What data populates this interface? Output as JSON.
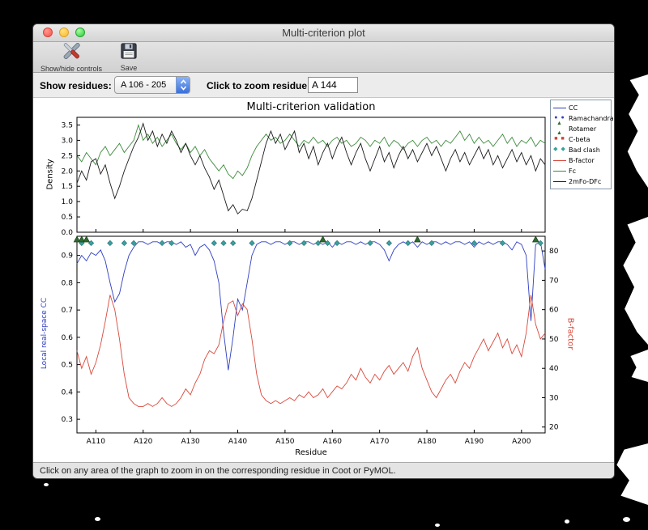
{
  "window": {
    "title": "Multi-criterion plot",
    "toolbar": {
      "show_hide_label": "Show/hide controls",
      "save_label": "Save"
    },
    "controls": {
      "show_residues_label": "Show residues:",
      "residue_range_value": "A 106 - 205",
      "zoom_label": "Click to zoom residue:",
      "zoom_value": "A 144"
    },
    "status_text": "Click on any area of the graph to zoom in on the corresponding residue in Coot or PyMOL."
  },
  "chart_data": {
    "type": "line",
    "title": "Multi-criterion validation",
    "x_label": "Residue",
    "x_start": 106,
    "x_end": 205,
    "x_ticks": [
      "A110",
      "A120",
      "A130",
      "A140",
      "A150",
      "A160",
      "A170",
      "A180",
      "A190",
      "A200"
    ],
    "legend_position": "top-right",
    "top_plot": {
      "y_label": "Density",
      "y_ticks": [
        0.0,
        0.5,
        1.0,
        1.5,
        2.0,
        2.5,
        3.0,
        3.5
      ],
      "ylim": [
        0,
        3.75
      ],
      "series": [
        {
          "name": "Fc",
          "color": "#3d8b3d",
          "values": [
            2.5,
            2.3,
            2.6,
            2.4,
            2.2,
            2.6,
            2.8,
            2.5,
            2.7,
            2.9,
            2.6,
            2.8,
            3.0,
            3.5,
            3.0,
            3.2,
            2.9,
            3.1,
            2.8,
            3.0,
            3.2,
            2.9,
            2.7,
            2.9,
            2.6,
            2.8,
            2.5,
            2.7,
            2.4,
            2.2,
            2.0,
            2.2,
            1.9,
            1.75,
            2.0,
            1.85,
            2.1,
            2.5,
            2.8,
            3.0,
            3.2,
            3.0,
            3.1,
            2.9,
            3.0,
            3.2,
            3.0,
            2.8,
            3.0,
            2.9,
            3.1,
            2.9,
            3.0,
            2.8,
            3.0,
            3.1,
            2.9,
            3.0,
            2.8,
            2.9,
            3.1,
            3.0,
            2.8,
            3.0,
            2.9,
            3.1,
            2.8,
            3.0,
            2.9,
            2.7,
            2.9,
            3.0,
            2.8,
            3.0,
            3.1,
            2.9,
            3.0,
            2.8,
            3.0,
            2.9,
            3.1,
            3.3,
            3.0,
            3.2,
            2.9,
            3.1,
            2.9,
            3.0,
            2.8,
            3.0,
            3.2,
            2.9,
            3.1,
            2.8,
            3.0,
            2.9,
            3.1,
            2.8,
            3.0,
            2.9
          ]
        },
        {
          "name": "2mFo-DFc",
          "color": "#1a1a1a",
          "values": [
            1.6,
            2.0,
            1.7,
            2.3,
            2.4,
            1.9,
            2.2,
            1.6,
            1.1,
            1.5,
            2.0,
            2.4,
            2.8,
            3.1,
            3.55,
            3.0,
            3.3,
            2.8,
            3.2,
            2.9,
            3.3,
            3.0,
            2.6,
            2.9,
            2.5,
            2.2,
            2.5,
            2.1,
            1.8,
            1.4,
            1.7,
            1.2,
            0.7,
            0.9,
            0.6,
            0.75,
            0.7,
            1.1,
            1.7,
            2.3,
            2.9,
            3.3,
            2.9,
            3.2,
            2.7,
            3.0,
            3.3,
            2.6,
            2.9,
            2.4,
            2.8,
            2.2,
            2.6,
            2.9,
            2.4,
            2.8,
            3.1,
            2.6,
            2.2,
            2.6,
            2.9,
            2.4,
            2.0,
            2.4,
            2.8,
            2.3,
            2.6,
            2.1,
            2.5,
            2.8,
            2.4,
            2.7,
            2.3,
            2.6,
            2.9,
            2.5,
            2.8,
            2.4,
            2.0,
            2.4,
            2.7,
            2.3,
            2.6,
            2.2,
            2.5,
            2.8,
            2.4,
            2.7,
            2.2,
            2.5,
            2.1,
            2.4,
            2.7,
            2.3,
            2.6,
            2.2,
            2.5,
            2.0,
            2.4,
            2.2
          ]
        }
      ]
    },
    "bottom_plot": {
      "y_label_left": "Local real-space CC",
      "y_label_right": "B-factor",
      "y_ticks_left": [
        0.3,
        0.4,
        0.5,
        0.6,
        0.7,
        0.8,
        0.9
      ],
      "ylim_left": [
        0.25,
        0.97
      ],
      "y_ticks_right": [
        20,
        30,
        40,
        50,
        60,
        70,
        80
      ],
      "ylim_right": [
        18,
        85
      ],
      "series": [
        {
          "name": "CC",
          "axis": "left",
          "color": "#2f3fc0",
          "values": [
            0.87,
            0.9,
            0.88,
            0.91,
            0.9,
            0.92,
            0.88,
            0.8,
            0.73,
            0.76,
            0.84,
            0.9,
            0.93,
            0.95,
            0.95,
            0.94,
            0.95,
            0.95,
            0.94,
            0.95,
            0.95,
            0.94,
            0.95,
            0.93,
            0.94,
            0.9,
            0.93,
            0.94,
            0.92,
            0.88,
            0.8,
            0.62,
            0.48,
            0.6,
            0.74,
            0.7,
            0.8,
            0.9,
            0.94,
            0.95,
            0.95,
            0.94,
            0.95,
            0.95,
            0.94,
            0.95,
            0.95,
            0.94,
            0.95,
            0.95,
            0.94,
            0.95,
            0.94,
            0.95,
            0.93,
            0.95,
            0.94,
            0.95,
            0.95,
            0.94,
            0.95,
            0.94,
            0.95,
            0.95,
            0.94,
            0.92,
            0.88,
            0.92,
            0.94,
            0.95,
            0.94,
            0.95,
            0.93,
            0.95,
            0.94,
            0.95,
            0.95,
            0.94,
            0.95,
            0.94,
            0.95,
            0.95,
            0.94,
            0.95,
            0.93,
            0.95,
            0.94,
            0.95,
            0.94,
            0.95,
            0.95,
            0.94,
            0.92,
            0.95,
            0.94,
            0.9,
            0.66,
            0.94,
            0.95,
            0.85
          ]
        },
        {
          "name": "B-factor",
          "axis": "right",
          "color": "#d9483b",
          "values": [
            46,
            40,
            44,
            38,
            42,
            48,
            56,
            65,
            60,
            50,
            38,
            30,
            28,
            27,
            27,
            28,
            27,
            28,
            30,
            28,
            27,
            28,
            30,
            33,
            31,
            35,
            38,
            43,
            46,
            45,
            48,
            56,
            62,
            63,
            58,
            62,
            60,
            50,
            38,
            31,
            29,
            28,
            29,
            28,
            29,
            30,
            29,
            31,
            30,
            32,
            30,
            31,
            33,
            30,
            32,
            34,
            33,
            35,
            38,
            36,
            40,
            37,
            35,
            38,
            36,
            39,
            41,
            38,
            40,
            42,
            39,
            44,
            47,
            40,
            36,
            32,
            30,
            33,
            36,
            38,
            35,
            39,
            42,
            40,
            44,
            47,
            50,
            46,
            49,
            52,
            47,
            50,
            45,
            48,
            44,
            52,
            65,
            55,
            50,
            52
          ]
        }
      ],
      "markers": [
        {
          "name": "Bad clash",
          "shape": "diamond",
          "color": "#3aa0a0",
          "edge": "#1f7070",
          "y": 0.945,
          "residues": [
            107,
            109,
            113,
            116,
            118,
            124,
            126,
            135,
            137,
            139,
            143,
            151,
            154,
            157,
            159,
            161,
            168,
            172,
            176,
            181,
            190,
            196,
            204
          ]
        },
        {
          "name": "Rotamer",
          "shape": "triangle",
          "color": "#2e6b2e",
          "edge": "#123812",
          "y": 0.958,
          "residues": [
            106,
            107,
            108,
            158,
            178,
            203
          ]
        }
      ]
    },
    "legend": [
      {
        "label": "CC",
        "type": "line",
        "color": "#2f3fc0"
      },
      {
        "label": "Ramachandran",
        "type": "circles",
        "color": "#2f3fc0"
      },
      {
        "label": "Rotamer",
        "type": "triangles",
        "color": "#2e6b2e"
      },
      {
        "label": "C-beta",
        "type": "squares",
        "color": "#cc4433"
      },
      {
        "label": "Bad clash",
        "type": "diamonds",
        "color": "#3aa0a0"
      },
      {
        "label": "B-factor",
        "type": "line",
        "color": "#d9483b"
      },
      {
        "label": "Fc",
        "type": "line",
        "color": "#3d8b3d"
      },
      {
        "label": "2mFo-DFc",
        "type": "line",
        "color": "#1a1a1a"
      }
    ]
  }
}
